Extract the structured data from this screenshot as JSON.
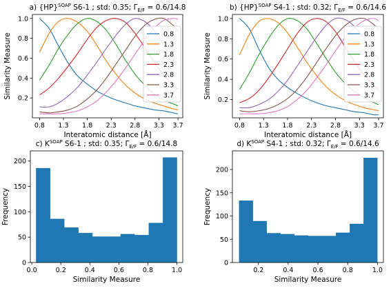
{
  "chart_data": [
    {
      "type": "line",
      "title": {
        "prefix": "a) {HP}",
        "sup": "SOAP",
        "mid": " S6-1 ; std: 0.35; Γ",
        "sub": "E/F",
        "suffix": " = 0.6/14.8"
      },
      "xlabel": "Interatomic distance [Å]",
      "ylabel": "Similarity Measure",
      "xlim": [
        0.65,
        3.8
      ],
      "ylim": [
        0.0,
        1.04
      ],
      "xticks": [
        "0.8",
        "1.3",
        "1.8",
        "2.3",
        "2.8",
        "3.3",
        "3.7"
      ],
      "yticks": [
        "0.2",
        "0.4",
        "0.6",
        "0.8",
        "1.0"
      ],
      "legend": "right",
      "x": [
        0.8,
        1.0,
        1.2,
        1.4,
        1.6,
        1.8,
        2.0,
        2.2,
        2.4,
        2.6,
        2.8,
        3.0,
        3.2,
        3.4,
        3.6,
        3.7
      ],
      "series": [
        {
          "name": "0.8",
          "color": "#1f77b4",
          "values": [
            1.0,
            0.9,
            0.72,
            0.55,
            0.42,
            0.34,
            0.27,
            0.22,
            0.18,
            0.15,
            0.12,
            0.1,
            0.08,
            0.07,
            0.05,
            0.04
          ]
        },
        {
          "name": "1.3",
          "color": "#ff7f0e",
          "values": [
            0.66,
            0.85,
            0.97,
            1.0,
            0.96,
            0.87,
            0.73,
            0.57,
            0.44,
            0.33,
            0.25,
            0.19,
            0.15,
            0.12,
            0.09,
            0.08
          ]
        },
        {
          "name": "1.8",
          "color": "#2ca02c",
          "values": [
            0.38,
            0.53,
            0.7,
            0.84,
            0.95,
            1.0,
            0.97,
            0.88,
            0.74,
            0.58,
            0.44,
            0.33,
            0.24,
            0.18,
            0.14,
            0.12
          ]
        },
        {
          "name": "2.3",
          "color": "#d62728",
          "values": [
            0.23,
            0.3,
            0.4,
            0.52,
            0.65,
            0.79,
            0.91,
            0.98,
            1.0,
            0.96,
            0.85,
            0.71,
            0.56,
            0.43,
            0.33,
            0.29
          ]
        },
        {
          "name": "2.8",
          "color": "#9467bd",
          "values": [
            0.11,
            0.11,
            0.15,
            0.22,
            0.31,
            0.43,
            0.56,
            0.7,
            0.83,
            0.94,
            1.0,
            0.97,
            0.88,
            0.74,
            0.58,
            0.51
          ]
        },
        {
          "name": "3.3",
          "color": "#8c564b",
          "values": [
            0.06,
            0.05,
            0.06,
            0.08,
            0.12,
            0.19,
            0.28,
            0.4,
            0.54,
            0.68,
            0.82,
            0.93,
            0.99,
            1.0,
            0.93,
            0.87
          ]
        },
        {
          "name": "3.7",
          "color": "#e377c2",
          "values": [
            0.04,
            0.04,
            0.04,
            0.05,
            0.07,
            0.11,
            0.17,
            0.26,
            0.37,
            0.5,
            0.64,
            0.78,
            0.9,
            0.98,
            1.0,
            0.99
          ]
        }
      ]
    },
    {
      "type": "line",
      "title": {
        "prefix": "b) {HP}",
        "sup": "SOAP",
        "mid": " S4-1 ; std: 0.32; Γ",
        "sub": "E/F",
        "suffix": " = 0.6/14.6"
      },
      "xlabel": "Interatomic distance [Å]",
      "ylabel": "Similarity Measure",
      "xlim": [
        0.65,
        3.8
      ],
      "ylim": [
        0.02,
        1.04
      ],
      "xticks": [
        "0.8",
        "1.3",
        "1.8",
        "2.3",
        "2.8",
        "3.3",
        "3.7"
      ],
      "yticks": [
        "0.2",
        "0.4",
        "0.6",
        "0.8",
        "1.0"
      ],
      "legend": "right",
      "x": [
        0.8,
        1.0,
        1.2,
        1.4,
        1.6,
        1.8,
        2.0,
        2.2,
        2.4,
        2.6,
        2.8,
        3.0,
        3.2,
        3.4,
        3.6,
        3.7
      ],
      "series": [
        {
          "name": "0.8",
          "color": "#1f77b4",
          "values": [
            1.0,
            0.9,
            0.7,
            0.52,
            0.4,
            0.32,
            0.26,
            0.21,
            0.17,
            0.14,
            0.12,
            0.1,
            0.08,
            0.07,
            0.05,
            0.05
          ]
        },
        {
          "name": "1.3",
          "color": "#ff7f0e",
          "values": [
            0.64,
            0.84,
            0.97,
            1.0,
            0.96,
            0.86,
            0.72,
            0.57,
            0.44,
            0.33,
            0.25,
            0.19,
            0.15,
            0.12,
            0.1,
            0.09
          ]
        },
        {
          "name": "1.8",
          "color": "#2ca02c",
          "values": [
            0.3,
            0.46,
            0.64,
            0.8,
            0.93,
            1.0,
            0.98,
            0.9,
            0.76,
            0.61,
            0.47,
            0.36,
            0.28,
            0.22,
            0.17,
            0.15
          ]
        },
        {
          "name": "2.3",
          "color": "#d62728",
          "values": [
            0.17,
            0.21,
            0.29,
            0.41,
            0.55,
            0.7,
            0.85,
            0.96,
            1.0,
            0.97,
            0.87,
            0.72,
            0.57,
            0.44,
            0.34,
            0.29
          ]
        },
        {
          "name": "2.8",
          "color": "#9467bd",
          "values": [
            0.12,
            0.12,
            0.15,
            0.2,
            0.28,
            0.39,
            0.53,
            0.67,
            0.81,
            0.93,
            1.0,
            0.99,
            0.92,
            0.8,
            0.66,
            0.6
          ]
        },
        {
          "name": "3.3",
          "color": "#8c564b",
          "values": [
            0.09,
            0.08,
            0.09,
            0.11,
            0.15,
            0.21,
            0.3,
            0.42,
            0.56,
            0.7,
            0.83,
            0.93,
            0.99,
            1.0,
            0.94,
            0.89
          ]
        },
        {
          "name": "3.7",
          "color": "#e377c2",
          "values": [
            0.06,
            0.06,
            0.06,
            0.07,
            0.09,
            0.13,
            0.2,
            0.29,
            0.41,
            0.54,
            0.68,
            0.81,
            0.91,
            0.98,
            1.0,
            0.98
          ]
        }
      ]
    },
    {
      "type": "bar",
      "title": {
        "prefix": "c) K",
        "sup": "SOAP",
        "mid": " S6-1 ; std: 0.35; Γ",
        "sub": "E/F",
        "suffix": " = 0.6/14.8"
      },
      "xlabel": "Similarity Measure",
      "ylabel": "Frequency",
      "xlim": [
        -0.01,
        1.04
      ],
      "ylim": [
        0,
        220
      ],
      "xticks": [
        0.0,
        0.2,
        0.4,
        0.6,
        0.8,
        1.0
      ],
      "yticks": [
        0,
        50,
        100,
        150,
        200
      ],
      "color": "#1f77b4",
      "bin_edges": [
        0.03,
        0.127,
        0.224,
        0.321,
        0.418,
        0.515,
        0.612,
        0.709,
        0.806,
        0.903,
        1.0
      ],
      "values": [
        186,
        86,
        69,
        58,
        51,
        51,
        56,
        54,
        78,
        207
      ]
    },
    {
      "type": "bar",
      "title": {
        "prefix": "d) K",
        "sup": "SOAP",
        "mid": " S4-1 ; std: 0.32; Γ",
        "sub": "E/F",
        "suffix": " = 0.6/14.6"
      },
      "xlabel": "Similarity Measure",
      "ylabel": "Frequency",
      "xlim": [
        0.025,
        1.04
      ],
      "ylim": [
        0,
        240
      ],
      "xticks": [
        0.2,
        0.4,
        0.6,
        0.8,
        1.0
      ],
      "yticks": [
        0,
        50,
        100,
        150,
        200
      ],
      "color": "#1f77b4",
      "bin_edges": [
        0.07,
        0.163,
        0.256,
        0.349,
        0.442,
        0.535,
        0.628,
        0.721,
        0.814,
        0.907,
        1.0
      ],
      "values": [
        133,
        89,
        63,
        61,
        58,
        57,
        57,
        64,
        83,
        225
      ]
    }
  ]
}
